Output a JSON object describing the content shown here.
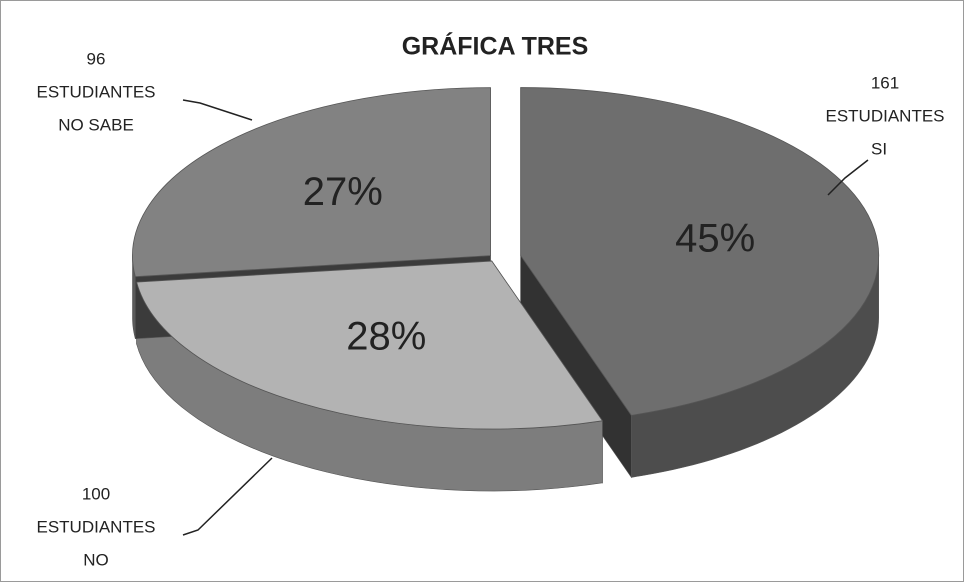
{
  "chart_data": {
    "type": "pie",
    "title": "GRÁFICA TRES",
    "categories": [
      "SI",
      "NO",
      "NO SABE"
    ],
    "counts": [
      161,
      100,
      96
    ],
    "unit": "ESTUDIANTES",
    "values": [
      45,
      28,
      27
    ],
    "value_labels": [
      "45%",
      "28%",
      "27%"
    ],
    "colors": [
      "#6e6e6e",
      "#b3b3b3",
      "#828282"
    ]
  }
}
